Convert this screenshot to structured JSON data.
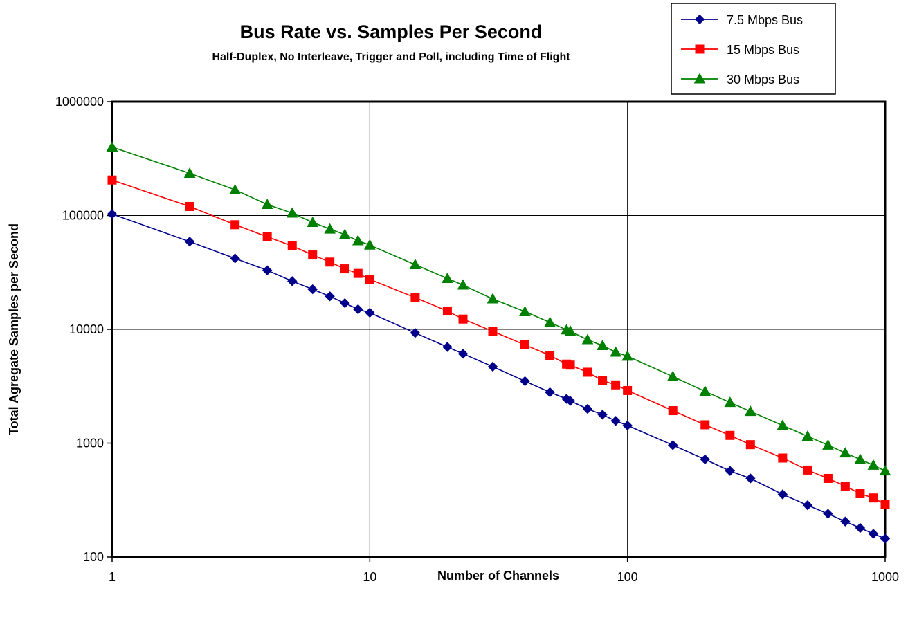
{
  "chart_data": {
    "type": "line",
    "title": "Bus Rate vs. Samples Per Second",
    "subtitle": "Half-Duplex, No Interleave, Trigger and Poll, including Time of Flight",
    "xlabel": "Number of Channels",
    "ylabel": "Total Agregate Samples per Second",
    "x_scale": "log",
    "y_scale": "log",
    "xlim": [
      1,
      1000
    ],
    "ylim": [
      100,
      1000000
    ],
    "x_ticks": [
      "1",
      "10",
      "100",
      "1000"
    ],
    "y_ticks": [
      "100",
      "1000",
      "10000",
      "100000",
      "1000000"
    ],
    "grid": true,
    "legend_position": "top-right",
    "x": [
      1,
      2,
      3,
      4,
      5,
      6,
      7,
      8,
      9,
      10,
      15,
      20,
      23,
      30,
      40,
      50,
      58,
      60,
      70,
      80,
      90,
      100,
      150,
      200,
      250,
      300,
      400,
      500,
      600,
      700,
      800,
      900,
      1000
    ],
    "series": [
      {
        "name": "7.5 Mbps Bus",
        "color": "#00008b",
        "marker": "diamond",
        "values": [
          103000,
          59000,
          42000,
          33000,
          26500,
          22500,
          19500,
          17000,
          15000,
          14000,
          9300,
          7000,
          6100,
          4700,
          3500,
          2800,
          2450,
          2350,
          2000,
          1780,
          1570,
          1430,
          960,
          720,
          570,
          490,
          355,
          285,
          240,
          205,
          180,
          160,
          145
        ]
      },
      {
        "name": "15 Mbps Bus",
        "color": "#ff0000",
        "marker": "square",
        "values": [
          205000,
          120000,
          83000,
          65000,
          54000,
          45000,
          39000,
          34000,
          31000,
          27500,
          19000,
          14500,
          12300,
          9600,
          7300,
          5900,
          4950,
          4850,
          4200,
          3550,
          3250,
          2900,
          1930,
          1450,
          1170,
          970,
          740,
          580,
          490,
          420,
          360,
          330,
          290
        ]
      },
      {
        "name": "30 Mbps Bus",
        "color": "#008000",
        "marker": "triangle",
        "values": [
          400000,
          235000,
          168000,
          125000,
          105000,
          87000,
          76000,
          68000,
          60000,
          55000,
          37000,
          28000,
          24500,
          18500,
          14300,
          11500,
          9900,
          9600,
          8100,
          7200,
          6300,
          5800,
          3850,
          2850,
          2280,
          1900,
          1430,
          1150,
          960,
          820,
          720,
          640,
          570
        ]
      }
    ]
  }
}
